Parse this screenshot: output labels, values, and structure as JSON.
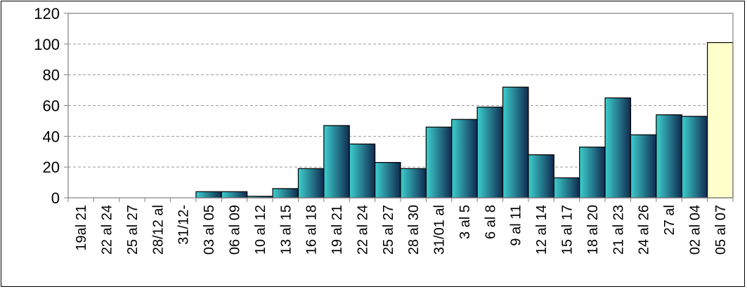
{
  "chart_data": {
    "type": "bar",
    "title": "",
    "xlabel": "",
    "ylabel": "",
    "ylim": [
      0,
      120
    ],
    "yticks": [
      "0",
      "20",
      "40",
      "60",
      "80",
      "100",
      "120"
    ],
    "grid": true,
    "legend": "none",
    "categories": [
      "19al 21",
      "22 al 24",
      "25 al 27",
      "28/12 al",
      "31/12-",
      "03 al 05",
      "06 al 09",
      "10 al 12",
      "13 al 15",
      "16 al 18",
      "19 al 21",
      "22 al 24",
      "25 al 27",
      "28 al 30",
      "31/01 al",
      "3 al 5",
      "6 al 8",
      "9 al 11",
      "12 al 14",
      "15 al 17",
      "18 al 20",
      "21 al 23",
      "24 al 26",
      "27 al",
      "02 al 04",
      "05 al 07"
    ],
    "values": [
      0,
      0,
      0,
      0,
      0,
      4,
      4,
      1,
      6,
      19,
      47,
      35,
      23,
      19,
      46,
      51,
      59,
      72,
      28,
      13,
      33,
      65,
      41,
      54,
      53,
      101
    ],
    "highlight_index": 25,
    "colors": {
      "bar_light": "#3ccfcf",
      "bar_dark": "#102a4e",
      "highlight_fill": "#ffffcc",
      "axis": "#808080",
      "grid": "#9a9a9a"
    }
  }
}
